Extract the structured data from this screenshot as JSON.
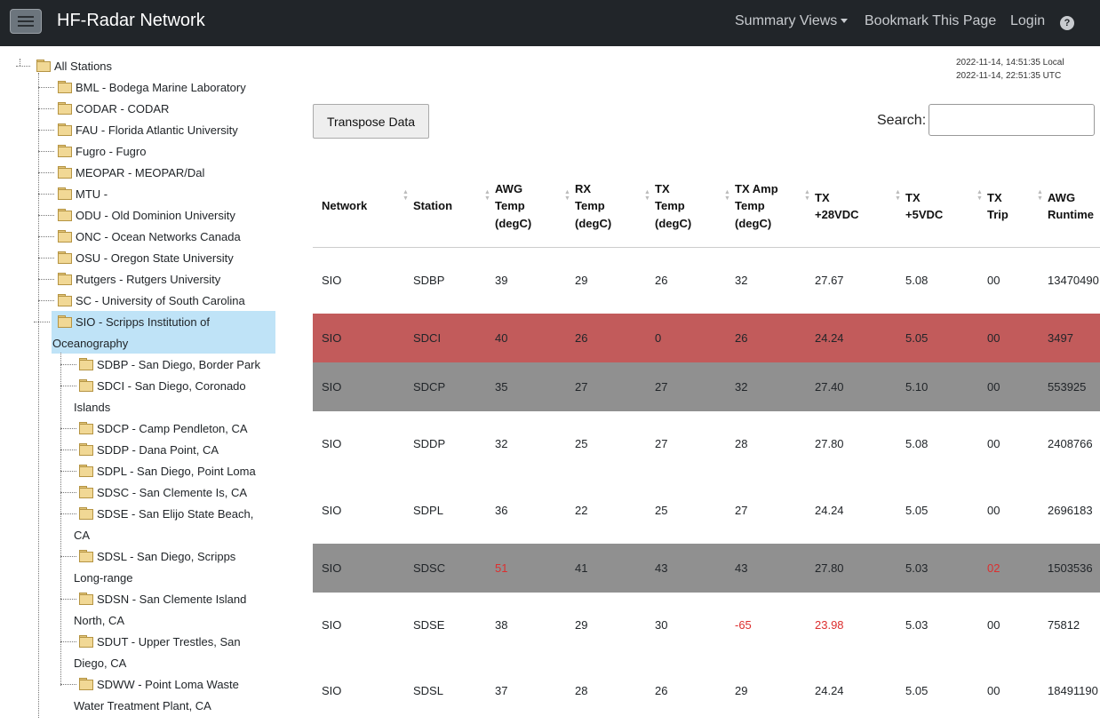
{
  "navbar": {
    "brand": "HF-Radar Network",
    "summary_views": "Summary Views",
    "bookmark": "Bookmark This Page",
    "login": "Login",
    "help": "?"
  },
  "tree": {
    "root": "All Stations",
    "networks": [
      "BML - Bodega Marine Laboratory",
      "CODAR - CODAR",
      "FAU - Florida Atlantic University",
      "Fugro - Fugro",
      "MEOPAR - MEOPAR/Dal",
      "MTU -",
      "ODU - Old Dominion University",
      "ONC - Ocean Networks Canada",
      "OSU - Oregon State University",
      "Rutgers - Rutgers University",
      "SC - University of South Carolina"
    ],
    "selected": {
      "line1": "SIO - Scripps Institution of",
      "line2": "Oceanography"
    },
    "sio_stations": [
      {
        "line1": "SDBP - San Diego, Border Park",
        "line2": ""
      },
      {
        "line1": "SDCI - San Diego, Coronado",
        "line2": "Islands"
      },
      {
        "line1": "SDCP - Camp Pendleton, CA",
        "line2": ""
      },
      {
        "line1": "SDDP - Dana Point, CA",
        "line2": ""
      },
      {
        "line1": "SDPL - San Diego, Point Loma",
        "line2": ""
      },
      {
        "line1": "SDSC - San Clemente Is, CA",
        "line2": ""
      },
      {
        "line1": "SDSE - San Elijo State Beach,",
        "line2": "CA"
      },
      {
        "line1": "SDSL - San Diego, Scripps",
        "line2": "Long-range"
      },
      {
        "line1": "SDSN - San Clemente Island",
        "line2": "North, CA"
      },
      {
        "line1": "SDUT - Upper Trestles, San",
        "line2": "Diego, CA"
      },
      {
        "line1": "SDWW - Point Loma Waste",
        "line2": "Water Treatment Plant, CA"
      }
    ]
  },
  "timestamp": {
    "local": "2022-11-14, 14:51:35 Local",
    "utc": "2022-11-14, 22:51:35 UTC"
  },
  "controls": {
    "transpose": "Transpose Data",
    "search_label": "Search:",
    "search_value": ""
  },
  "table": {
    "headers": [
      {
        "l1": "Network",
        "l2": "",
        "l3": ""
      },
      {
        "l1": "Station",
        "l2": "",
        "l3": ""
      },
      {
        "l1": "AWG",
        "l2": "Temp",
        "l3": "(degC)"
      },
      {
        "l1": "RX",
        "l2": "Temp",
        "l3": "(degC)"
      },
      {
        "l1": "TX",
        "l2": "Temp",
        "l3": "(degC)"
      },
      {
        "l1": "TX Amp",
        "l2": "Temp",
        "l3": "(degC)"
      },
      {
        "l1": "TX",
        "l2": "+28VDC",
        "l3": ""
      },
      {
        "l1": "TX",
        "l2": "+5VDC",
        "l3": ""
      },
      {
        "l1": "TX",
        "l2": "Trip",
        "l3": ""
      },
      {
        "l1": "AWG",
        "l2": "Runtime",
        "l3": ""
      }
    ],
    "rows": [
      {
        "status": "normal",
        "cells": [
          "SIO",
          "SDBP",
          "39",
          "29",
          "26",
          "32",
          "27.67",
          "5.08",
          "00",
          "13470490"
        ]
      },
      {
        "status": "error",
        "cells": [
          "SIO",
          "SDCI",
          "40",
          "26",
          "0",
          "26",
          "24.24",
          "5.05",
          "00",
          "3497"
        ]
      },
      {
        "status": "offline",
        "cells": [
          "SIO",
          "SDCP",
          "35",
          "27",
          "27",
          "32",
          "27.40",
          "5.10",
          "00",
          "553925"
        ]
      },
      {
        "status": "normal",
        "cells": [
          "SIO",
          "SDDP",
          "32",
          "25",
          "27",
          "28",
          "27.80",
          "5.08",
          "00",
          "2408766"
        ]
      },
      {
        "status": "normal",
        "cells": [
          "SIO",
          "SDPL",
          "36",
          "22",
          "25",
          "27",
          "24.24",
          "5.05",
          "00",
          "2696183"
        ]
      },
      {
        "status": "offline",
        "cells": [
          "SIO",
          "SDSC",
          "51",
          "41",
          "43",
          "43",
          "27.80",
          "5.03",
          "02",
          "1503536"
        ]
      },
      {
        "status": "normal",
        "cells": [
          "SIO",
          "SDSE",
          "38",
          "29",
          "30",
          "-65",
          "23.98",
          "5.03",
          "00",
          "75812"
        ]
      },
      {
        "status": "normal",
        "cells": [
          "SIO",
          "SDSL",
          "37",
          "28",
          "26",
          "29",
          "24.24",
          "5.05",
          "00",
          "18491190"
        ]
      }
    ],
    "warnings": [
      {
        "row": 5,
        "col": 2
      },
      {
        "row": 5,
        "col": 8
      },
      {
        "row": 6,
        "col": 5
      },
      {
        "row": 6,
        "col": 6
      }
    ]
  },
  "colors": {
    "navbar": "#212529",
    "row_error": "#c25b5b",
    "row_offline": "#909090",
    "selected_node": "#bfe3f7",
    "warning_text": "#dc2f2f"
  }
}
